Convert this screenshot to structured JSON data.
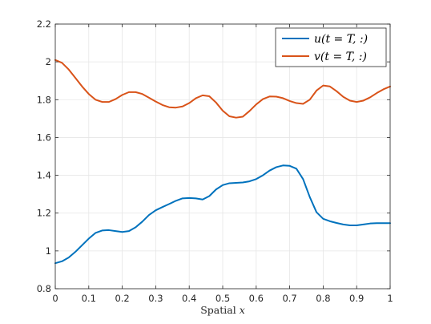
{
  "chart_data": {
    "type": "line",
    "title": "",
    "xlabel": "Spatial x",
    "xlabel_parts": {
      "prefix": "Spatial ",
      "var": "x"
    },
    "ylabel": "",
    "xlim": [
      0,
      1
    ],
    "ylim": [
      0.8,
      2.2
    ],
    "xticks": [
      0,
      0.1,
      0.2,
      0.3,
      0.4,
      0.5,
      0.6,
      0.7,
      0.8,
      0.9,
      1
    ],
    "xtick_labels": [
      "0",
      "0.1",
      "0.2",
      "0.3",
      "0.4",
      "0.5",
      "0.6",
      "0.7",
      "0.8",
      "0.9",
      "1"
    ],
    "yticks": [
      0.8,
      1,
      1.2,
      1.4,
      1.6,
      1.8,
      2,
      2.2
    ],
    "ytick_labels": [
      "0.8",
      "1",
      "1.2",
      "1.4",
      "1.6",
      "1.8",
      "2",
      "2.2"
    ],
    "grid": true,
    "legend_position": "top-right",
    "series": [
      {
        "name": "u(t = T, :)",
        "color": "#0072BD",
        "x": [
          0,
          0.02,
          0.04,
          0.06,
          0.08,
          0.1,
          0.12,
          0.14,
          0.16,
          0.18,
          0.2,
          0.22,
          0.24,
          0.26,
          0.28,
          0.3,
          0.32,
          0.34,
          0.36,
          0.38,
          0.4,
          0.42,
          0.44,
          0.46,
          0.48,
          0.5,
          0.52,
          0.54,
          0.56,
          0.58,
          0.6,
          0.62,
          0.64,
          0.66,
          0.68,
          0.7,
          0.72,
          0.74,
          0.76,
          0.78,
          0.8,
          0.82,
          0.84,
          0.86,
          0.88,
          0.9,
          0.92,
          0.94,
          0.96,
          0.98,
          1
        ],
        "values": [
          0.935,
          0.945,
          0.965,
          0.995,
          1.03,
          1.065,
          1.095,
          1.108,
          1.11,
          1.105,
          1.1,
          1.105,
          1.125,
          1.155,
          1.19,
          1.215,
          1.232,
          1.248,
          1.265,
          1.278,
          1.28,
          1.278,
          1.272,
          1.29,
          1.325,
          1.348,
          1.358,
          1.36,
          1.362,
          1.368,
          1.38,
          1.4,
          1.425,
          1.443,
          1.452,
          1.45,
          1.435,
          1.38,
          1.285,
          1.205,
          1.17,
          1.157,
          1.148,
          1.14,
          1.135,
          1.135,
          1.14,
          1.145,
          1.147,
          1.147,
          1.147
        ]
      },
      {
        "name": "v(t = T, :)",
        "color": "#D95319",
        "x": [
          0,
          0.02,
          0.04,
          0.06,
          0.08,
          0.1,
          0.12,
          0.14,
          0.16,
          0.18,
          0.2,
          0.22,
          0.24,
          0.26,
          0.28,
          0.3,
          0.32,
          0.34,
          0.36,
          0.38,
          0.4,
          0.42,
          0.44,
          0.46,
          0.48,
          0.5,
          0.52,
          0.54,
          0.56,
          0.58,
          0.6,
          0.62,
          0.64,
          0.66,
          0.68,
          0.7,
          0.72,
          0.74,
          0.76,
          0.78,
          0.8,
          0.82,
          0.84,
          0.86,
          0.88,
          0.9,
          0.92,
          0.94,
          0.96,
          0.98,
          1
        ],
        "values": [
          2.01,
          1.995,
          1.96,
          1.915,
          1.87,
          1.83,
          1.8,
          1.788,
          1.788,
          1.803,
          1.825,
          1.84,
          1.84,
          1.83,
          1.81,
          1.79,
          1.772,
          1.76,
          1.758,
          1.764,
          1.782,
          1.808,
          1.823,
          1.818,
          1.785,
          1.742,
          1.712,
          1.705,
          1.71,
          1.74,
          1.775,
          1.803,
          1.817,
          1.816,
          1.808,
          1.793,
          1.782,
          1.778,
          1.8,
          1.848,
          1.875,
          1.87,
          1.845,
          1.815,
          1.795,
          1.788,
          1.795,
          1.812,
          1.835,
          1.855,
          1.87
        ]
      }
    ]
  }
}
